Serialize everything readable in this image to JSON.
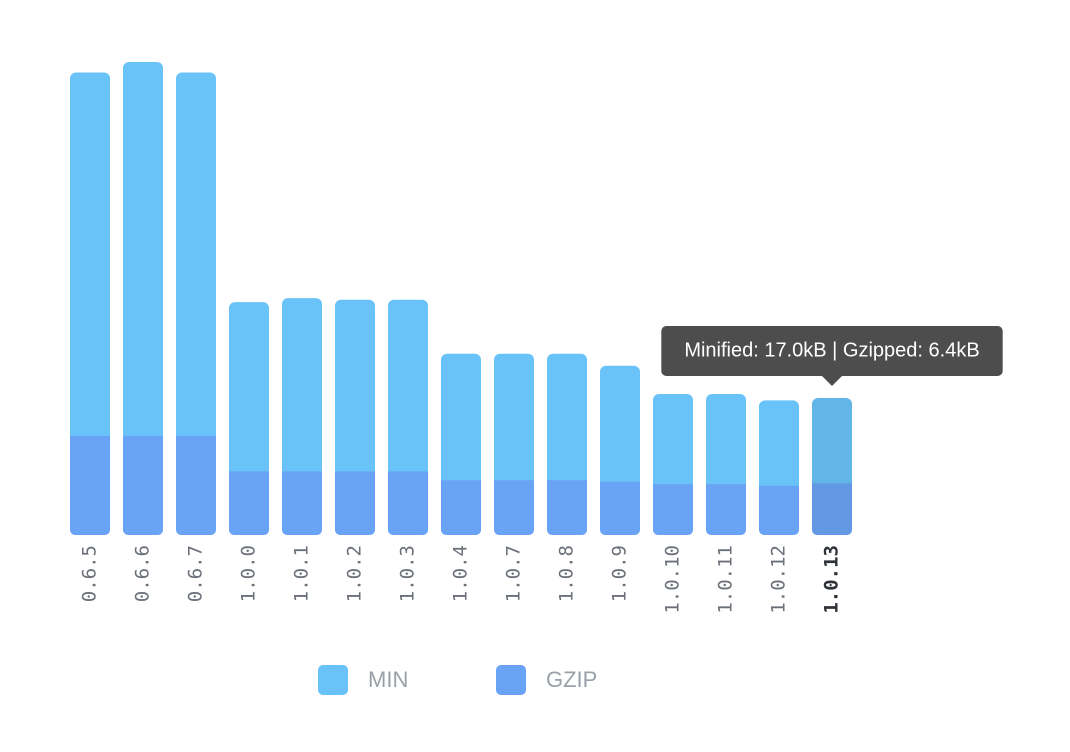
{
  "chart_data": {
    "type": "bar",
    "categories": [
      "0.6.5",
      "0.6.6",
      "0.6.7",
      "1.0.0",
      "1.0.1",
      "1.0.2",
      "1.0.3",
      "1.0.4",
      "1.0.7",
      "1.0.8",
      "1.0.9",
      "1.0.10",
      "1.0.11",
      "1.0.12",
      "1.0.13"
    ],
    "series": [
      {
        "name": "MIN",
        "color": "#69c3f8",
        "values": [
          57.4,
          58.7,
          57.4,
          28.9,
          29.4,
          29.2,
          29.2,
          22.5,
          22.5,
          22.5,
          21.0,
          17.5,
          17.5,
          16.7,
          17.0
        ]
      },
      {
        "name": "GZIP",
        "color": "#69a3f5",
        "values": [
          12.3,
          12.3,
          12.3,
          7.9,
          7.9,
          7.9,
          7.9,
          6.8,
          6.8,
          6.8,
          6.6,
          6.3,
          6.3,
          6.1,
          6.4
        ]
      }
    ],
    "highlight": "1.0.13",
    "tooltip": "Minified: 17.0kB | Gzipped: 6.4kB"
  }
}
